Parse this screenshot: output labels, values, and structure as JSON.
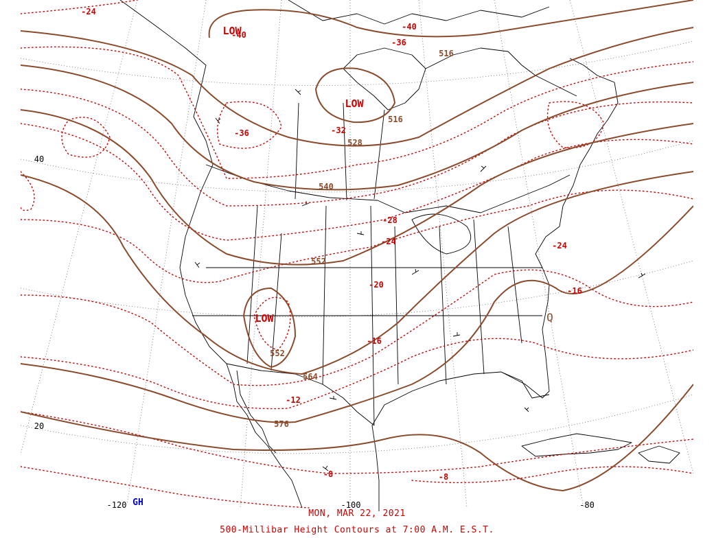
{
  "map": {
    "date": "MON, MAR 22, 2021",
    "title": "500-Millibar Height Contours at 7:00 A.M. E.S.T.",
    "watermark": "GH",
    "colors": {
      "height_contour": "#8b4a2b",
      "temperature_contour": "#cc0000",
      "geography": "#000000",
      "graticule": "#555555",
      "watermark": "#0000cc"
    },
    "latitude_labels": [
      "40",
      "20"
    ],
    "longitude_labels": [
      "-120",
      "-100",
      "-80"
    ],
    "height_labels": [
      "516",
      "516",
      "528",
      "540",
      "552",
      "552",
      "564",
      "576"
    ],
    "temperature_labels": [
      "-24",
      "-40",
      "-40",
      "-36",
      "-36",
      "-32",
      "-28",
      "-24",
      "-24",
      "-20",
      "-16",
      "-16",
      "-12",
      "-8",
      "-8"
    ],
    "pressure_centers": [
      "LOW",
      "LOW",
      "LOW"
    ],
    "symbols": [
      "Q"
    ]
  }
}
